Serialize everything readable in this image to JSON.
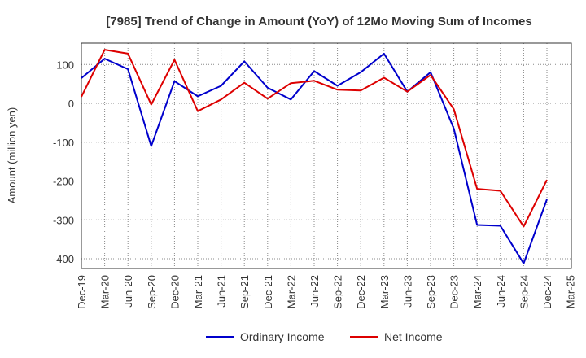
{
  "chart_data": {
    "type": "line",
    "title": "[7985]  Trend of Change in Amount (YoY) of 12Mo Moving Sum of Incomes",
    "xlabel": "",
    "ylabel": "Amount (million yen)",
    "categories": [
      "Dec-19",
      "Mar-20",
      "Jun-20",
      "Sep-20",
      "Dec-20",
      "Mar-21",
      "Jun-21",
      "Sep-21",
      "Dec-21",
      "Mar-22",
      "Jun-22",
      "Sep-22",
      "Dec-22",
      "Mar-23",
      "Jun-23",
      "Sep-23",
      "Dec-23",
      "Mar-24",
      "Jun-24",
      "Sep-24",
      "Dec-24",
      "Mar-25"
    ],
    "y_ticks": [
      100,
      0,
      -100,
      -200,
      -300,
      -400
    ],
    "ylim": [
      -425,
      155
    ],
    "grid": true,
    "legend_position": "bottom",
    "series": [
      {
        "name": "Ordinary Income",
        "color": "#0000cc",
        "values": [
          65,
          115,
          88,
          -110,
          57,
          18,
          45,
          108,
          40,
          10,
          83,
          45,
          80,
          128,
          30,
          80,
          -65,
          -313,
          -315,
          -412,
          -247,
          null
        ]
      },
      {
        "name": "Net Income",
        "color": "#dd0000",
        "values": [
          17,
          138,
          128,
          -3,
          112,
          -20,
          10,
          53,
          12,
          52,
          58,
          35,
          33,
          66,
          30,
          73,
          -15,
          -220,
          -225,
          -317,
          -197,
          null
        ]
      }
    ]
  }
}
